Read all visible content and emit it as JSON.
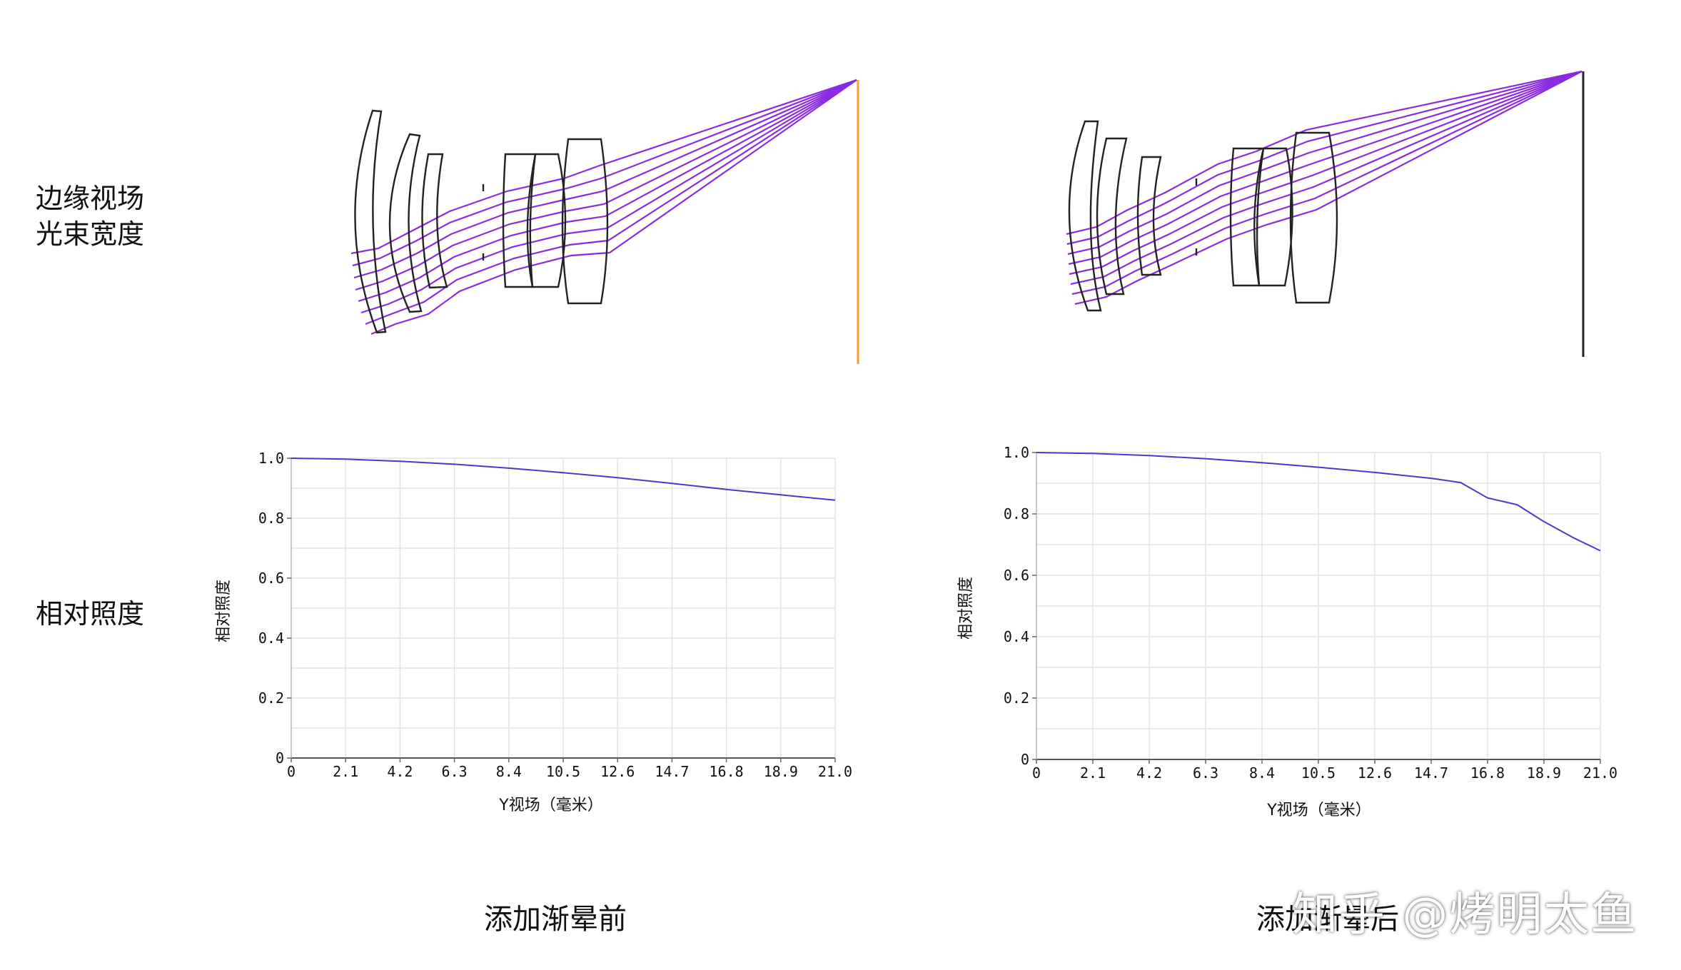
{
  "row_labels": {
    "beam_line1": "边缘视场",
    "beam_line2": "光束宽度",
    "illumination": "相对照度"
  },
  "captions": {
    "before": "添加渐晕前",
    "after": "添加渐晕后"
  },
  "watermark": "知乎 @烤明太鱼",
  "colors": {
    "ray": "#8a2be2",
    "lens": "#222222",
    "image_plane_before": "#ff9933",
    "image_plane_after": "#222222",
    "curve": "#5533cc",
    "grid": "#e3e3e3"
  },
  "chart_data": [
    {
      "type": "line",
      "title": "",
      "xlabel": "Y视场（毫米）",
      "ylabel": "相对照度",
      "xlim": [
        0,
        21.0
      ],
      "ylim": [
        0,
        1.0
      ],
      "xticks": [
        "0",
        "2.1",
        "4.2",
        "6.3",
        "8.4",
        "10.5",
        "12.6",
        "14.7",
        "16.8",
        "18.9",
        "21.0"
      ],
      "yticks": [
        "0",
        "0.2",
        "0.4",
        "0.6",
        "0.8",
        "1.0"
      ],
      "grid": true,
      "series": [
        {
          "x": [
            0,
            2.1,
            4.2,
            6.3,
            8.4,
            10.5,
            12.6,
            14.7,
            16.8,
            18.9,
            21.0
          ],
          "y": [
            1.0,
            0.997,
            0.99,
            0.98,
            0.967,
            0.952,
            0.935,
            0.916,
            0.896,
            0.878,
            0.86
          ]
        }
      ]
    },
    {
      "type": "line",
      "title": "",
      "xlabel": "Y视场（毫米）",
      "ylabel": "相对照度",
      "xlim": [
        0,
        21.0
      ],
      "ylim": [
        0,
        1.0
      ],
      "xticks": [
        "0",
        "2.1",
        "4.2",
        "6.3",
        "8.4",
        "10.5",
        "12.6",
        "14.7",
        "16.8",
        "18.9",
        "21.0"
      ],
      "yticks": [
        "0",
        "0.2",
        "0.4",
        "0.6",
        "0.8",
        "1.0"
      ],
      "grid": true,
      "series": [
        {
          "x": [
            0,
            2.1,
            4.2,
            6.3,
            8.4,
            10.5,
            12.6,
            14.7,
            15.8,
            16.8,
            17.9,
            18.9,
            20.0,
            21.0
          ],
          "y": [
            1.0,
            0.997,
            0.99,
            0.98,
            0.967,
            0.952,
            0.935,
            0.916,
            0.902,
            0.852,
            0.83,
            0.775,
            0.722,
            0.68
          ]
        }
      ]
    }
  ]
}
